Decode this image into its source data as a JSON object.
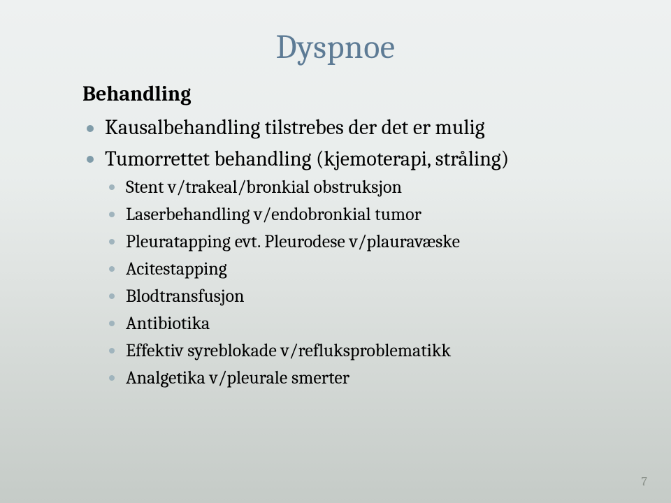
{
  "title": {
    "text": "Dyspnoe",
    "fontsize": 48,
    "color": "#5d7b95"
  },
  "subhead": {
    "text": "Behandling",
    "fontsize": 30,
    "color": "#000000"
  },
  "bullet_color_top": "#809ca9",
  "bullet_color_nested": "#a0b4bd",
  "text_color": "#000000",
  "items": [
    {
      "text": "Kausalbehandling tilstrebes der det er mulig",
      "children": []
    },
    {
      "text": "Tumorrettet behandling (kjemoterapi, stråling)",
      "children": [
        {
          "text": "Stent v/trakeal/bronkial obstruksjon"
        },
        {
          "text": "Laserbehandling v/endobronkial tumor"
        },
        {
          "text": "Pleuratapping evt. Pleurodese v/plauravæske"
        },
        {
          "text": "Acitestapping"
        },
        {
          "text": "Blodtransfusjon"
        },
        {
          "text": "Antibiotika"
        },
        {
          "text": "Effektiv syreblokade v/refluksproblematikk"
        },
        {
          "text": "Analgetika v/pleurale smerter"
        }
      ]
    }
  ],
  "page_number": "7",
  "page_number_color": "#8d948d",
  "background_gradient": [
    "#eef1f1",
    "#c5cbc7"
  ]
}
